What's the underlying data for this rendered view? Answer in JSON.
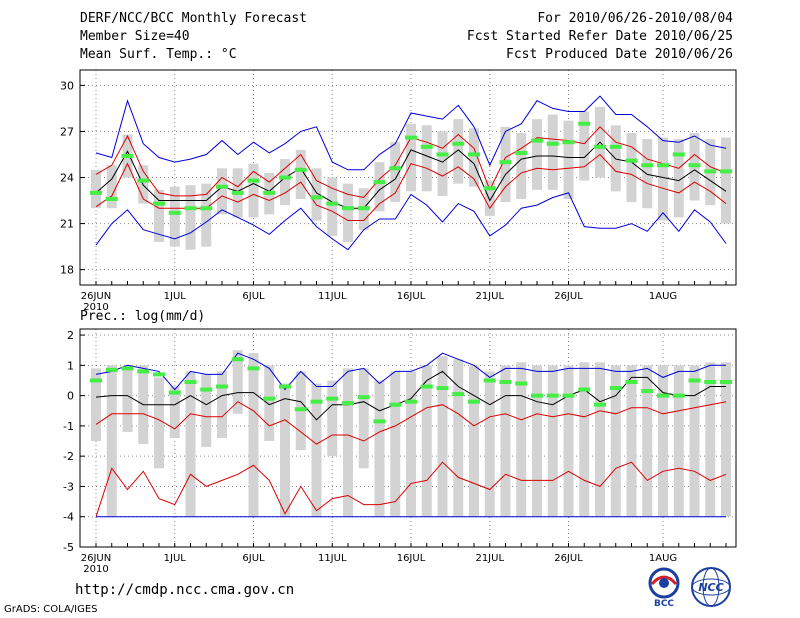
{
  "header": {
    "title": "DERF/NCC/BCC Monthly Forecast",
    "member_size": "Member Size=40",
    "variable_top": "Mean Surf. Temp.: °C",
    "period": "For 2010/06/26-2010/08/04",
    "fcst_started": "Fcst Started Refer Date 2010/06/25",
    "fcst_produced": "Fcst Produced Date 2010/06/26",
    "variable_bottom": "Prec.: log(mm/d)"
  },
  "footer": {
    "url": "http://cmdp.ncc.cma.gov.cn",
    "credit": "GrADS: COLA/IGES",
    "logo_bcc": "BCC",
    "logo_ncc": "NCC"
  },
  "chart_data": [
    {
      "type": "line",
      "title": "Mean Surf. Temp.: °C",
      "ylabel": "°C",
      "ylim": [
        17,
        31
      ],
      "yticks": [
        18,
        21,
        24,
        27,
        30
      ],
      "grid": true,
      "x_day_labels": [
        {
          "day": 0,
          "label": "26JUN",
          "sub": "2010"
        },
        {
          "day": 5,
          "label": "1JUL"
        },
        {
          "day": 10,
          "label": "6JUL"
        },
        {
          "day": 15,
          "label": "11JUL"
        },
        {
          "day": 20,
          "label": "16JUL"
        },
        {
          "day": 25,
          "label": "21JUL"
        },
        {
          "day": 30,
          "label": "26JUL"
        },
        {
          "day": 36,
          "label": "1AUG"
        }
      ],
      "series": [
        {
          "name": "max",
          "color": "#0000dd",
          "values": [
            25.6,
            25.3,
            29.0,
            26.2,
            25.3,
            25.0,
            25.2,
            25.5,
            26.4,
            25.5,
            26.3,
            25.6,
            26.2,
            27.0,
            27.3,
            25.0,
            24.5,
            24.5,
            25.5,
            26.2,
            28.2,
            28.0,
            27.8,
            28.7,
            27.3,
            24.8,
            27.0,
            27.5,
            29.0,
            28.5,
            28.3,
            28.3,
            29.3,
            28.1,
            28.1,
            27.3,
            26.4,
            26.3,
            26.7,
            26.1,
            25.9
          ]
        },
        {
          "name": "upper",
          "color": "#dd0000",
          "values": [
            24.2,
            24.8,
            26.7,
            24.4,
            23.0,
            22.8,
            22.8,
            22.9,
            24.0,
            23.4,
            24.4,
            23.7,
            24.6,
            25.5,
            23.8,
            23.3,
            22.9,
            22.7,
            23.9,
            24.8,
            26.6,
            26.3,
            25.9,
            26.8,
            25.9,
            23.2,
            25.3,
            25.9,
            26.6,
            26.5,
            26.4,
            26.2,
            27.3,
            26.3,
            26.0,
            25.2,
            24.9,
            24.6,
            25.5,
            24.7,
            24.3
          ]
        },
        {
          "name": "mean",
          "color": "#000000",
          "values": [
            23.0,
            23.9,
            25.7,
            23.5,
            22.5,
            22.5,
            22.5,
            22.5,
            23.4,
            23.1,
            23.6,
            23.1,
            24.0,
            24.6,
            23.0,
            22.4,
            22.0,
            22.0,
            23.2,
            23.9,
            25.8,
            25.4,
            25.0,
            25.8,
            24.9,
            22.5,
            24.2,
            25.2,
            25.4,
            25.4,
            25.3,
            25.3,
            26.3,
            25.2,
            25.0,
            24.2,
            24.0,
            23.8,
            24.5,
            23.8,
            23.1
          ]
        },
        {
          "name": "lower",
          "color": "#dd0000",
          "values": [
            22.1,
            22.8,
            24.9,
            22.6,
            22.0,
            22.0,
            22.0,
            22.0,
            22.8,
            22.4,
            22.9,
            22.5,
            23.0,
            23.7,
            22.2,
            21.8,
            21.2,
            21.2,
            22.3,
            23.0,
            24.9,
            24.6,
            24.1,
            24.7,
            23.9,
            22.0,
            23.4,
            24.3,
            24.6,
            24.5,
            24.6,
            24.7,
            25.5,
            24.4,
            24.2,
            23.6,
            23.3,
            23.0,
            23.7,
            23.1,
            22.3
          ]
        },
        {
          "name": "min",
          "color": "#0000dd",
          "values": [
            19.6,
            21.0,
            21.9,
            20.6,
            20.3,
            20.0,
            20.4,
            21.1,
            21.9,
            21.4,
            20.9,
            20.3,
            21.2,
            22.0,
            20.8,
            20.0,
            19.3,
            20.6,
            21.3,
            21.3,
            22.9,
            22.2,
            21.1,
            22.3,
            21.8,
            20.2,
            20.9,
            22.0,
            22.2,
            22.7,
            23.0,
            20.8,
            20.7,
            20.7,
            21.0,
            20.5,
            21.7,
            20.5,
            21.9,
            21.1,
            19.7
          ]
        }
      ],
      "box_ranges": [
        [
          22,
          24.5
        ],
        [
          22,
          24.8
        ],
        [
          24,
          26.8
        ],
        [
          22.3,
          24.8
        ],
        [
          19.8,
          23.2
        ],
        [
          19.5,
          23.4
        ],
        [
          19.3,
          23.5
        ],
        [
          19.5,
          23.6
        ],
        [
          21.6,
          24.6
        ],
        [
          21.4,
          24.6
        ],
        [
          21.4,
          24.9
        ],
        [
          21.6,
          24.3
        ],
        [
          22.2,
          25.2
        ],
        [
          22.6,
          25.8
        ],
        [
          21.2,
          24.6
        ],
        [
          20.2,
          24.0
        ],
        [
          19.8,
          23.6
        ],
        [
          20.6,
          23.3
        ],
        [
          21.8,
          25.0
        ],
        [
          22.4,
          26.3
        ],
        [
          23.1,
          27.5
        ],
        [
          23.1,
          27.4
        ],
        [
          22.8,
          27.0
        ],
        [
          23.6,
          27.8
        ],
        [
          23.4,
          27.2
        ],
        [
          21.5,
          23.8
        ],
        [
          22.4,
          27.3
        ],
        [
          22.6,
          26.9
        ],
        [
          23.2,
          27.8
        ],
        [
          23.2,
          28.1
        ],
        [
          22.6,
          27.7
        ],
        [
          23.8,
          28.3
        ],
        [
          24.0,
          28.6
        ],
        [
          23.1,
          27.4
        ],
        [
          22.4,
          26.9
        ],
        [
          22.0,
          26.5
        ],
        [
          21.2,
          26.6
        ],
        [
          21.4,
          26.5
        ],
        [
          22.5,
          26.9
        ],
        [
          22.2,
          26.5
        ],
        [
          21.0,
          26.6
        ]
      ],
      "ensemble_markers": [
        23.0,
        22.6,
        25.4,
        23.8,
        22.3,
        21.7,
        22.0,
        22.0,
        23.4,
        23.0,
        23.8,
        23.0,
        24.0,
        24.5,
        22.7,
        22.3,
        22.0,
        22.0,
        23.7,
        24.6,
        26.6,
        26.0,
        25.5,
        26.2,
        25.5,
        23.3,
        25.0,
        25.6,
        26.4,
        26.2,
        26.3,
        27.5,
        26.0,
        26.0,
        25.1,
        24.8,
        24.8,
        25.5,
        24.8,
        24.4,
        24.4
      ]
    },
    {
      "type": "line",
      "title": "Prec.: log(mm/d)",
      "ylabel": "log(mm/d)",
      "ylim": [
        -5,
        2.2
      ],
      "yticks": [
        -5,
        -4,
        -3,
        -2,
        -1,
        0,
        1,
        2
      ],
      "grid": true,
      "x_day_labels": [
        {
          "day": 0,
          "label": "26JUN",
          "sub": "2010"
        },
        {
          "day": 5,
          "label": "1JUL"
        },
        {
          "day": 10,
          "label": "6JUL"
        },
        {
          "day": 15,
          "label": "11JUL"
        },
        {
          "day": 20,
          "label": "16JUL"
        },
        {
          "day": 25,
          "label": "21JUL"
        },
        {
          "day": 30,
          "label": "26JUL"
        },
        {
          "day": 36,
          "label": "1AUG"
        }
      ],
      "series": [
        {
          "name": "max",
          "color": "#0000dd",
          "values": [
            0.7,
            0.8,
            1.0,
            0.9,
            0.8,
            0.2,
            0.8,
            0.7,
            0.7,
            1.4,
            1.2,
            0.9,
            0.2,
            0.8,
            0.3,
            0.3,
            0.8,
            0.9,
            0.4,
            0.8,
            0.8,
            1.0,
            1.4,
            1.2,
            1.0,
            0.6,
            0.9,
            0.9,
            0.8,
            0.8,
            0.9,
            0.9,
            0.9,
            0.8,
            0.8,
            0.9,
            0.6,
            0.8,
            0.8,
            1.0,
            1.0
          ]
        },
        {
          "name": "upper",
          "color": "#000000",
          "values": [
            -0.05,
            0.0,
            0.0,
            -0.3,
            -0.3,
            -0.3,
            0.0,
            -0.3,
            0.0,
            0.1,
            0.1,
            -0.3,
            -0.1,
            -0.2,
            -0.8,
            -0.3,
            -0.3,
            -0.2,
            -0.5,
            -0.3,
            -0.1,
            0.5,
            0.8,
            0.3,
            0.0,
            -0.3,
            0.0,
            0.0,
            -0.2,
            -0.3,
            0.0,
            0.2,
            -0.2,
            0.0,
            0.6,
            0.6,
            0.1,
            0.0,
            0.0,
            0.3,
            0.3
          ]
        },
        {
          "name": "mean",
          "color": "#dd0000",
          "values": [
            -0.95,
            -0.6,
            -0.6,
            -0.6,
            -0.8,
            -1.1,
            -0.6,
            -0.7,
            -0.7,
            -0.2,
            -0.5,
            -1.0,
            -0.8,
            -1.2,
            -1.6,
            -1.3,
            -1.3,
            -1.5,
            -1.2,
            -1.0,
            -0.7,
            -0.4,
            -0.3,
            -0.6,
            -1.0,
            -0.7,
            -0.6,
            -0.8,
            -0.6,
            -0.7,
            -0.6,
            -0.7,
            -0.5,
            -0.6,
            -0.4,
            -0.4,
            -0.6,
            -0.5,
            -0.4,
            -0.3,
            -0.2
          ]
        },
        {
          "name": "lower",
          "color": "#dd0000",
          "values": [
            -4.0,
            -2.4,
            -3.1,
            -2.5,
            -3.4,
            -3.6,
            -2.6,
            -3.0,
            -2.8,
            -2.6,
            -2.3,
            -2.8,
            -3.9,
            -3.0,
            -3.8,
            -3.4,
            -3.3,
            -3.6,
            -3.6,
            -3.5,
            -2.9,
            -2.8,
            -2.2,
            -2.7,
            -2.9,
            -3.1,
            -2.6,
            -2.8,
            -2.8,
            -2.8,
            -2.5,
            -2.8,
            -3.0,
            -2.4,
            -2.2,
            -2.8,
            -2.5,
            -2.4,
            -2.5,
            -2.8,
            -2.6
          ]
        },
        {
          "name": "min",
          "color": "#0000dd",
          "values": [
            -4.0,
            -4.0,
            -4.0,
            -4.0,
            -4.0,
            -4.0,
            -4.0,
            -4.0,
            -4.0,
            -4.0,
            -4.0,
            -4.0,
            -4.0,
            -4.0,
            -4.0,
            -4.0,
            -4.0,
            -4.0,
            -4.0,
            -4.0,
            -4.0,
            -4.0,
            -4.0,
            -4.0,
            -4.0,
            -4.0,
            -4.0,
            -4.0,
            -4.0,
            -4.0,
            -4.0,
            -4.0,
            -4.0,
            -4.0,
            -4.0,
            -4.0,
            -4.0,
            -4.0,
            -4.0,
            -4.0,
            -4.0
          ]
        }
      ],
      "box_ranges": [
        [
          -1.5,
          0.9
        ],
        [
          -4,
          1.0
        ],
        [
          -1.2,
          1.0
        ],
        [
          -1.6,
          1.0
        ],
        [
          -2.4,
          0.6
        ],
        [
          -1.4,
          0.3
        ],
        [
          -4,
          0.8
        ],
        [
          -1.7,
          0.7
        ],
        [
          -1.4,
          0.8
        ],
        [
          -0.6,
          1.5
        ],
        [
          -4,
          1.4
        ],
        [
          -1.5,
          1.0
        ],
        [
          -4,
          0.4
        ],
        [
          -1.8,
          0.8
        ],
        [
          -4,
          0.4
        ],
        [
          -2.0,
          0.5
        ],
        [
          -4,
          0.9
        ],
        [
          -2.4,
          0.9
        ],
        [
          -4,
          0.5
        ],
        [
          -4,
          0.8
        ],
        [
          -4,
          0.8
        ],
        [
          -4,
          1.0
        ],
        [
          -4,
          1.3
        ],
        [
          -4,
          1.2
        ],
        [
          -4,
          1.0
        ],
        [
          -4,
          0.8
        ],
        [
          -4,
          1.0
        ],
        [
          -4,
          1.1
        ],
        [
          -4,
          1.0
        ],
        [
          -4,
          1.0
        ],
        [
          -4,
          1.0
        ],
        [
          -4,
          1.1
        ],
        [
          -4,
          1.1
        ],
        [
          -4,
          1.0
        ],
        [
          -4,
          1.0
        ],
        [
          -4,
          1.0
        ],
        [
          -4,
          1.0
        ],
        [
          -4,
          1.0
        ],
        [
          -4,
          1.0
        ],
        [
          -4,
          1.1
        ],
        [
          -4,
          1.1
        ]
      ],
      "ensemble_markers": [
        0.5,
        0.85,
        0.9,
        0.8,
        0.7,
        0.1,
        0.45,
        0.2,
        0.3,
        1.2,
        0.9,
        -0.1,
        0.3,
        -0.45,
        -0.2,
        -0.1,
        -0.25,
        -0.05,
        -0.85,
        -0.3,
        -0.2,
        0.3,
        0.25,
        0.05,
        -0.2,
        0.5,
        0.45,
        0.4,
        0.0,
        0.0,
        0.0,
        0.2,
        -0.3,
        0.25,
        0.45,
        0.15,
        0.0,
        0.0,
        0.5,
        0.45,
        0.45
      ]
    }
  ]
}
